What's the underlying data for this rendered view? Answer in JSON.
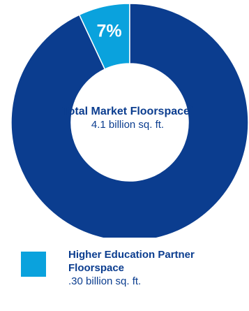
{
  "chart_data": {
    "type": "pie",
    "slices": [
      {
        "label": "Higher Education Partner Floorspace",
        "value": 7,
        "value_label": "7%",
        "color": "#0aa2dd"
      },
      {
        "label": "Total Market Floorspace",
        "value": 93,
        "color": "#0b3d8f"
      }
    ],
    "center": {
      "title": "Total Market Floorspace",
      "superscript": "2",
      "value_text": "4.1 billion sq. ft."
    },
    "legend": {
      "placement": "bottom-left",
      "items": [
        {
          "label": "Higher Education Partner Floorspace",
          "value_text": ".30 billion sq. ft.",
          "color": "#0aa2dd"
        }
      ]
    }
  }
}
